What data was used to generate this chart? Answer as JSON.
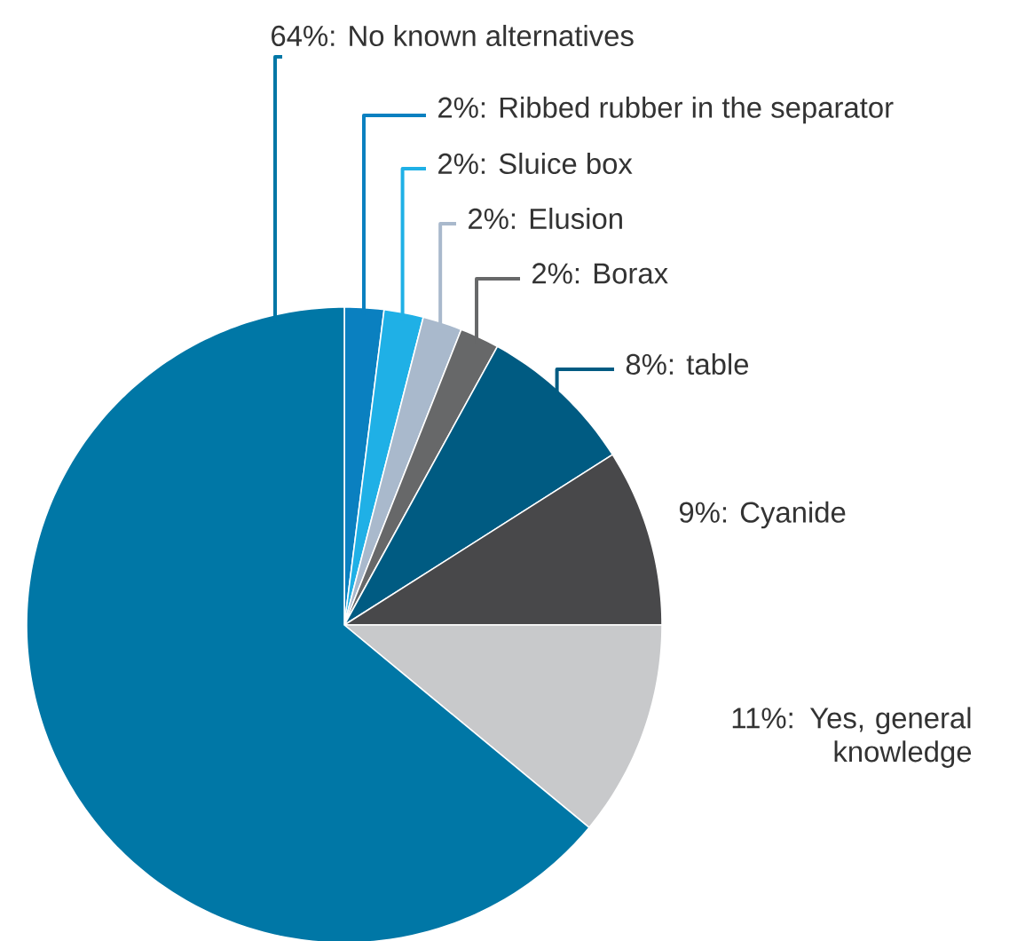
{
  "chart_data": {
    "type": "pie",
    "categories": [
      "Ribbed rubber in the separator",
      "Sluice box",
      "Elusion",
      "Borax",
      "table",
      "Cyanide",
      "Yes, general knowledge",
      "No known alternatives"
    ],
    "values": [
      2,
      2,
      2,
      2,
      8,
      9,
      11,
      64
    ],
    "value_labels": [
      "2%:",
      "2%:",
      "2%:",
      "2%:",
      "8%:",
      "9%:",
      "11%:",
      "64%:"
    ],
    "colors": [
      "#0a80c0",
      "#1fb0e6",
      "#a9b9cc",
      "#676869",
      "#005b82",
      "#48484a",
      "#c8c9cb",
      "#0077a6"
    ],
    "legend": false
  }
}
